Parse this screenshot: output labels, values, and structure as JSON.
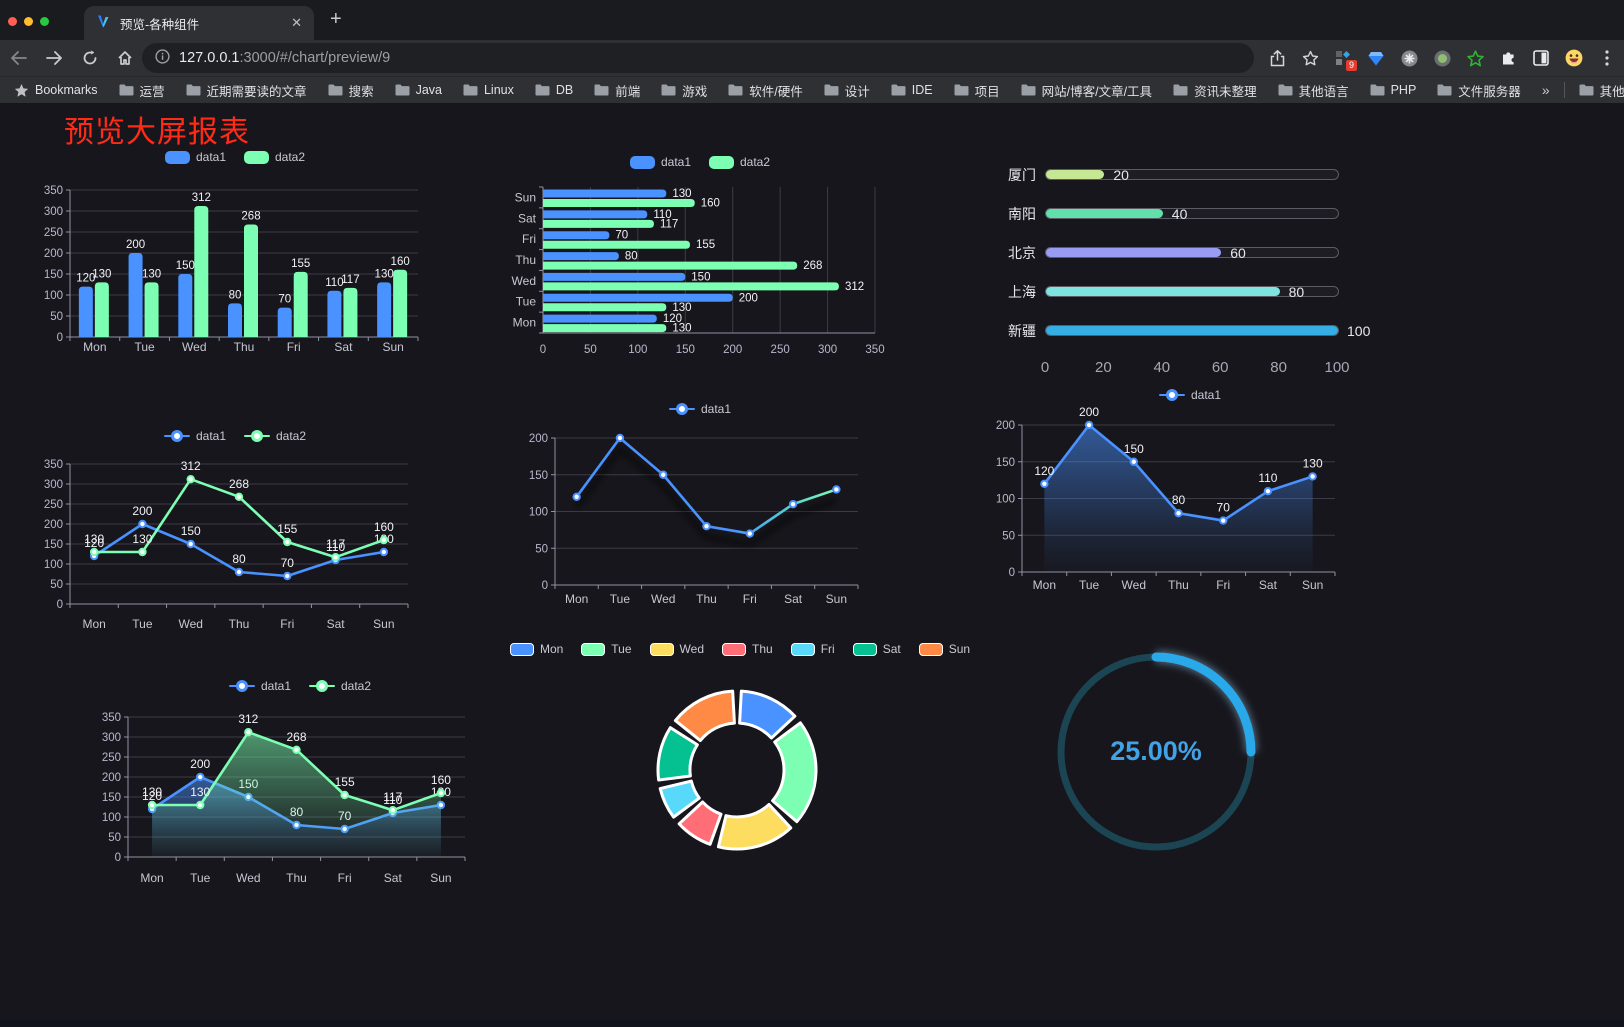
{
  "browser": {
    "traffic_lights": [
      "#ff5f57",
      "#febc2e",
      "#28c840"
    ],
    "tab_title": "预览-各种组件",
    "url_host": "127.0.0.1",
    "url_rest": ":3000/#/chart/preview/9",
    "bookmarks_label": "Bookmarks",
    "bookmarks": [
      "运营",
      "近期需要读的文章",
      "搜索",
      "Java",
      "Linux",
      "DB",
      "前端",
      "游戏",
      "软件/硬件",
      "设计",
      "IDE",
      "项目",
      "网站/博客/文章/工具",
      "资讯未整理",
      "其他语言",
      "PHP",
      "文件服务器"
    ],
    "bookmarks_overflow": "»",
    "other_bookmarks": "其他书签",
    "extension_badge": "9"
  },
  "page": {
    "title": "预览大屏报表",
    "title_color": "#ff2b17",
    "background": "#17161c"
  },
  "chart_data": [
    {
      "id": "bar-vertical",
      "type": "bar",
      "categories": [
        "Mon",
        "Tue",
        "Wed",
        "Thu",
        "Fri",
        "Sat",
        "Sun"
      ],
      "series": [
        {
          "name": "data1",
          "color": "#4992ff",
          "values": [
            120,
            200,
            150,
            80,
            70,
            110,
            130
          ]
        },
        {
          "name": "data2",
          "color": "#7cffb2",
          "values": [
            130,
            130,
            312,
            268,
            155,
            117,
            160
          ]
        }
      ],
      "ylim": [
        0,
        350
      ],
      "ytick_step": 50,
      "grid": true,
      "legend_position": "top"
    },
    {
      "id": "bar-horizontal",
      "type": "bar-horizontal",
      "categories": [
        "Mon",
        "Tue",
        "Wed",
        "Thu",
        "Fri",
        "Sat",
        "Sun"
      ],
      "row_order_top_to_bottom": [
        "Sun",
        "Sat",
        "Fri",
        "Thu",
        "Wed",
        "Tue",
        "Mon"
      ],
      "series": [
        {
          "name": "data1",
          "color": "#4992ff",
          "values": [
            120,
            200,
            150,
            80,
            70,
            110,
            130
          ]
        },
        {
          "name": "data2",
          "color": "#7cffb2",
          "values": [
            130,
            130,
            312,
            268,
            155,
            117,
            160
          ]
        }
      ],
      "xlim": [
        0,
        350
      ],
      "xtick_step": 50,
      "grid": true,
      "legend_position": "top"
    },
    {
      "id": "progress",
      "type": "bar-horizontal-progress",
      "max": 100,
      "xticks": [
        0,
        20,
        40,
        60,
        80,
        100
      ],
      "items": [
        {
          "label": "厦门",
          "value": 20,
          "color": "#c6e793"
        },
        {
          "label": "南阳",
          "value": 40,
          "color": "#62e0ab"
        },
        {
          "label": "北京",
          "value": 60,
          "color": "#989df3"
        },
        {
          "label": "上海",
          "value": 80,
          "color": "#7fe4df"
        },
        {
          "label": "新疆",
          "value": 100,
          "color": "#35aee3"
        }
      ]
    },
    {
      "id": "line-two",
      "type": "line",
      "categories": [
        "Mon",
        "Tue",
        "Wed",
        "Thu",
        "Fri",
        "Sat",
        "Sun"
      ],
      "series": [
        {
          "name": "data1",
          "color": "#4992ff",
          "values": [
            120,
            200,
            150,
            80,
            70,
            110,
            130
          ],
          "show_labels": true
        },
        {
          "name": "data2",
          "color": "#7cffb2",
          "values": [
            130,
            130,
            312,
            268,
            155,
            117,
            160
          ],
          "show_labels": true
        }
      ],
      "ylim": [
        0,
        350
      ],
      "ytick_step": 50,
      "grid": true,
      "legend_position": "top"
    },
    {
      "id": "line-gradient",
      "type": "line",
      "categories": [
        "Mon",
        "Tue",
        "Wed",
        "Thu",
        "Fri",
        "Sat",
        "Sun"
      ],
      "series": [
        {
          "name": "data1",
          "color": "#4992ff",
          "gradient": [
            "#4992ff",
            "#4992ff",
            "#52c9d4",
            "#7cffb2"
          ],
          "values": [
            120,
            200,
            150,
            80,
            70,
            110,
            130
          ],
          "show_labels": false,
          "shadow": true
        }
      ],
      "ylim": [
        0,
        200
      ],
      "ytick_step": 50,
      "grid": true,
      "legend_position": "top"
    },
    {
      "id": "area-single",
      "type": "area",
      "categories": [
        "Mon",
        "Tue",
        "Wed",
        "Thu",
        "Fri",
        "Sat",
        "Sun"
      ],
      "series": [
        {
          "name": "data1",
          "color": "#4992ff",
          "values": [
            120,
            200,
            150,
            80,
            70,
            110,
            130
          ],
          "area": true,
          "show_labels": true
        }
      ],
      "ylim": [
        0,
        200
      ],
      "ytick_step": 50,
      "grid": true,
      "legend_position": "top"
    },
    {
      "id": "area-two",
      "type": "area",
      "categories": [
        "Mon",
        "Tue",
        "Wed",
        "Thu",
        "Fri",
        "Sat",
        "Sun"
      ],
      "series": [
        {
          "name": "data1",
          "color": "#4992ff",
          "values": [
            120,
            200,
            150,
            80,
            70,
            110,
            130
          ],
          "area": true,
          "show_labels": true
        },
        {
          "name": "data2",
          "color": "#7cffb2",
          "values": [
            130,
            130,
            312,
            268,
            155,
            117,
            160
          ],
          "area": true,
          "show_labels": true
        }
      ],
      "ylim": [
        0,
        350
      ],
      "ytick_step": 50,
      "grid": true,
      "legend_position": "top"
    },
    {
      "id": "donut",
      "type": "pie",
      "inner_radius_pct": 60,
      "items": [
        {
          "name": "Mon",
          "value": 120,
          "color": "#4992ff"
        },
        {
          "name": "Tue",
          "value": 200,
          "color": "#7cffb2"
        },
        {
          "name": "Wed",
          "value": 150,
          "color": "#fddd60"
        },
        {
          "name": "Thu",
          "value": 80,
          "color": "#ff6e76"
        },
        {
          "name": "Fri",
          "value": 70,
          "color": "#58d9f9"
        },
        {
          "name": "Sat",
          "value": 110,
          "color": "#05c091"
        },
        {
          "name": "Sun",
          "value": 130,
          "color": "#ff8a45"
        }
      ],
      "border_color": "#ffffff",
      "legend_position": "top"
    },
    {
      "id": "gauge",
      "type": "gauge",
      "value": 25,
      "max": 100,
      "label": "25.00%",
      "arc_color": "#29a9ea",
      "track_color": "#1b4552",
      "text_color": "#41a3e6"
    }
  ]
}
